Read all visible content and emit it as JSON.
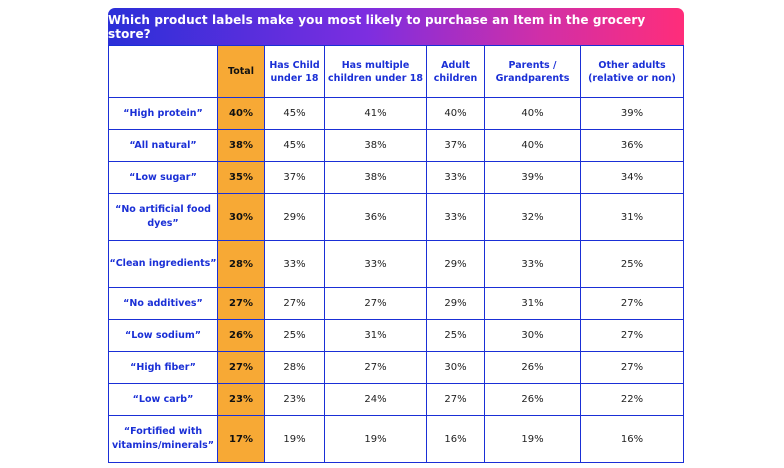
{
  "chart_data": {
    "type": "table",
    "title": "Which product labels make you most likely to purchase an Item in the grocery store?",
    "columns": [
      "",
      "Total",
      "Has Child under 18",
      "Has multiple children under 18",
      "Adult children",
      "Parents / Grandparents",
      "Other adults (relative or non)"
    ],
    "rows": [
      {
        "label": "“High protein”",
        "values": [
          "40%",
          "45%",
          "41%",
          "40%",
          "40%",
          "39%"
        ]
      },
      {
        "label": "“All natural”",
        "values": [
          "38%",
          "45%",
          "38%",
          "37%",
          "40%",
          "36%"
        ]
      },
      {
        "label": "“Low sugar”",
        "values": [
          "35%",
          "37%",
          "38%",
          "33%",
          "39%",
          "34%"
        ]
      },
      {
        "label": "“No artificial food dyes”",
        "values": [
          "30%",
          "29%",
          "36%",
          "33%",
          "32%",
          "31%"
        ]
      },
      {
        "label": "“Clean ingredients”",
        "values": [
          "28%",
          "33%",
          "33%",
          "29%",
          "33%",
          "25%"
        ]
      },
      {
        "label": "“No additives”",
        "values": [
          "27%",
          "27%",
          "27%",
          "29%",
          "31%",
          "27%"
        ]
      },
      {
        "label": "“Low sodium”",
        "values": [
          "26%",
          "25%",
          "31%",
          "25%",
          "30%",
          "27%"
        ]
      },
      {
        "label": "“High fiber”",
        "values": [
          "27%",
          "28%",
          "27%",
          "30%",
          "26%",
          "27%"
        ]
      },
      {
        "label": "“Low carb”",
        "values": [
          "23%",
          "23%",
          "24%",
          "27%",
          "26%",
          "22%"
        ]
      },
      {
        "label": "“Fortified with vitamins/minerals”",
        "values": [
          "17%",
          "19%",
          "19%",
          "16%",
          "19%",
          "16%"
        ]
      }
    ]
  },
  "colors": {
    "border": "#1a2fd6",
    "header_text": "#1a2fd6",
    "total_highlight": "#f7a935",
    "banner_gradient_start": "#2a2fd8",
    "banner_gradient_end": "#ff2d7a"
  }
}
